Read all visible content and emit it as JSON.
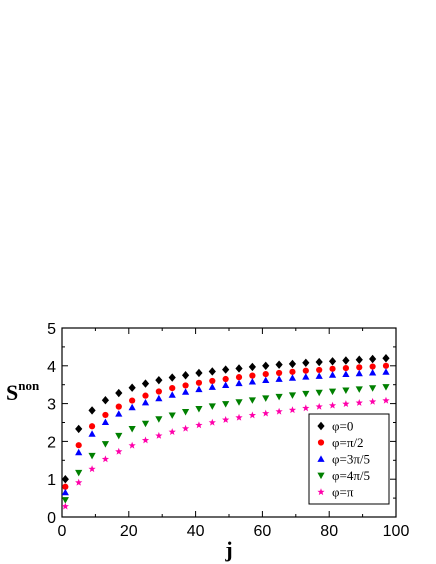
{
  "chart_data": {
    "type": "scatter",
    "xlabel": "j",
    "ylabel": "S",
    "ylabel_sup": "non",
    "xlim": [
      0,
      100
    ],
    "ylim": [
      0,
      5
    ],
    "x_ticks": [
      0,
      20,
      40,
      60,
      80,
      100
    ],
    "y_ticks": [
      0,
      1,
      2,
      3,
      4,
      5
    ],
    "grid": false,
    "legend_position": "bottom-right",
    "x": [
      1,
      5,
      9,
      13,
      17,
      21,
      25,
      29,
      33,
      37,
      41,
      45,
      49,
      53,
      57,
      61,
      65,
      69,
      73,
      77,
      81,
      85,
      89,
      93,
      97
    ],
    "series": [
      {
        "name": "φ=0",
        "color": "#000000",
        "marker": "diamond",
        "values": [
          1.0,
          2.33,
          2.82,
          3.09,
          3.28,
          3.42,
          3.53,
          3.62,
          3.69,
          3.75,
          3.81,
          3.85,
          3.9,
          3.93,
          3.97,
          4.0,
          4.03,
          4.05,
          4.08,
          4.1,
          4.12,
          4.14,
          4.16,
          4.18,
          4.2
        ]
      },
      {
        "name": "φ=π/2",
        "color": "#ff0000",
        "marker": "circle",
        "values": [
          0.8,
          1.9,
          2.4,
          2.7,
          2.92,
          3.08,
          3.21,
          3.32,
          3.41,
          3.48,
          3.55,
          3.6,
          3.65,
          3.7,
          3.74,
          3.78,
          3.81,
          3.84,
          3.87,
          3.89,
          3.92,
          3.94,
          3.96,
          3.98,
          4.0
        ]
      },
      {
        "name": "φ=3π/5",
        "color": "#0000ff",
        "marker": "triangle-up",
        "values": [
          0.65,
          1.71,
          2.2,
          2.51,
          2.73,
          2.9,
          3.03,
          3.14,
          3.23,
          3.31,
          3.38,
          3.44,
          3.49,
          3.54,
          3.58,
          3.62,
          3.65,
          3.68,
          3.71,
          3.73,
          3.76,
          3.78,
          3.8,
          3.82,
          3.84
        ]
      },
      {
        "name": "φ=4π/5",
        "color": "#008000",
        "marker": "triangle-down",
        "values": [
          0.45,
          1.17,
          1.62,
          1.93,
          2.15,
          2.33,
          2.47,
          2.59,
          2.69,
          2.78,
          2.86,
          2.93,
          2.99,
          3.04,
          3.09,
          3.14,
          3.18,
          3.22,
          3.26,
          3.29,
          3.32,
          3.35,
          3.38,
          3.41,
          3.44
        ]
      },
      {
        "name": "φ=π",
        "color": "#ff00aa",
        "marker": "star",
        "values": [
          0.28,
          0.91,
          1.27,
          1.53,
          1.73,
          1.89,
          2.03,
          2.15,
          2.25,
          2.34,
          2.43,
          2.5,
          2.57,
          2.63,
          2.69,
          2.74,
          2.79,
          2.83,
          2.88,
          2.92,
          2.95,
          2.99,
          3.02,
          3.05,
          3.08
        ]
      }
    ]
  }
}
